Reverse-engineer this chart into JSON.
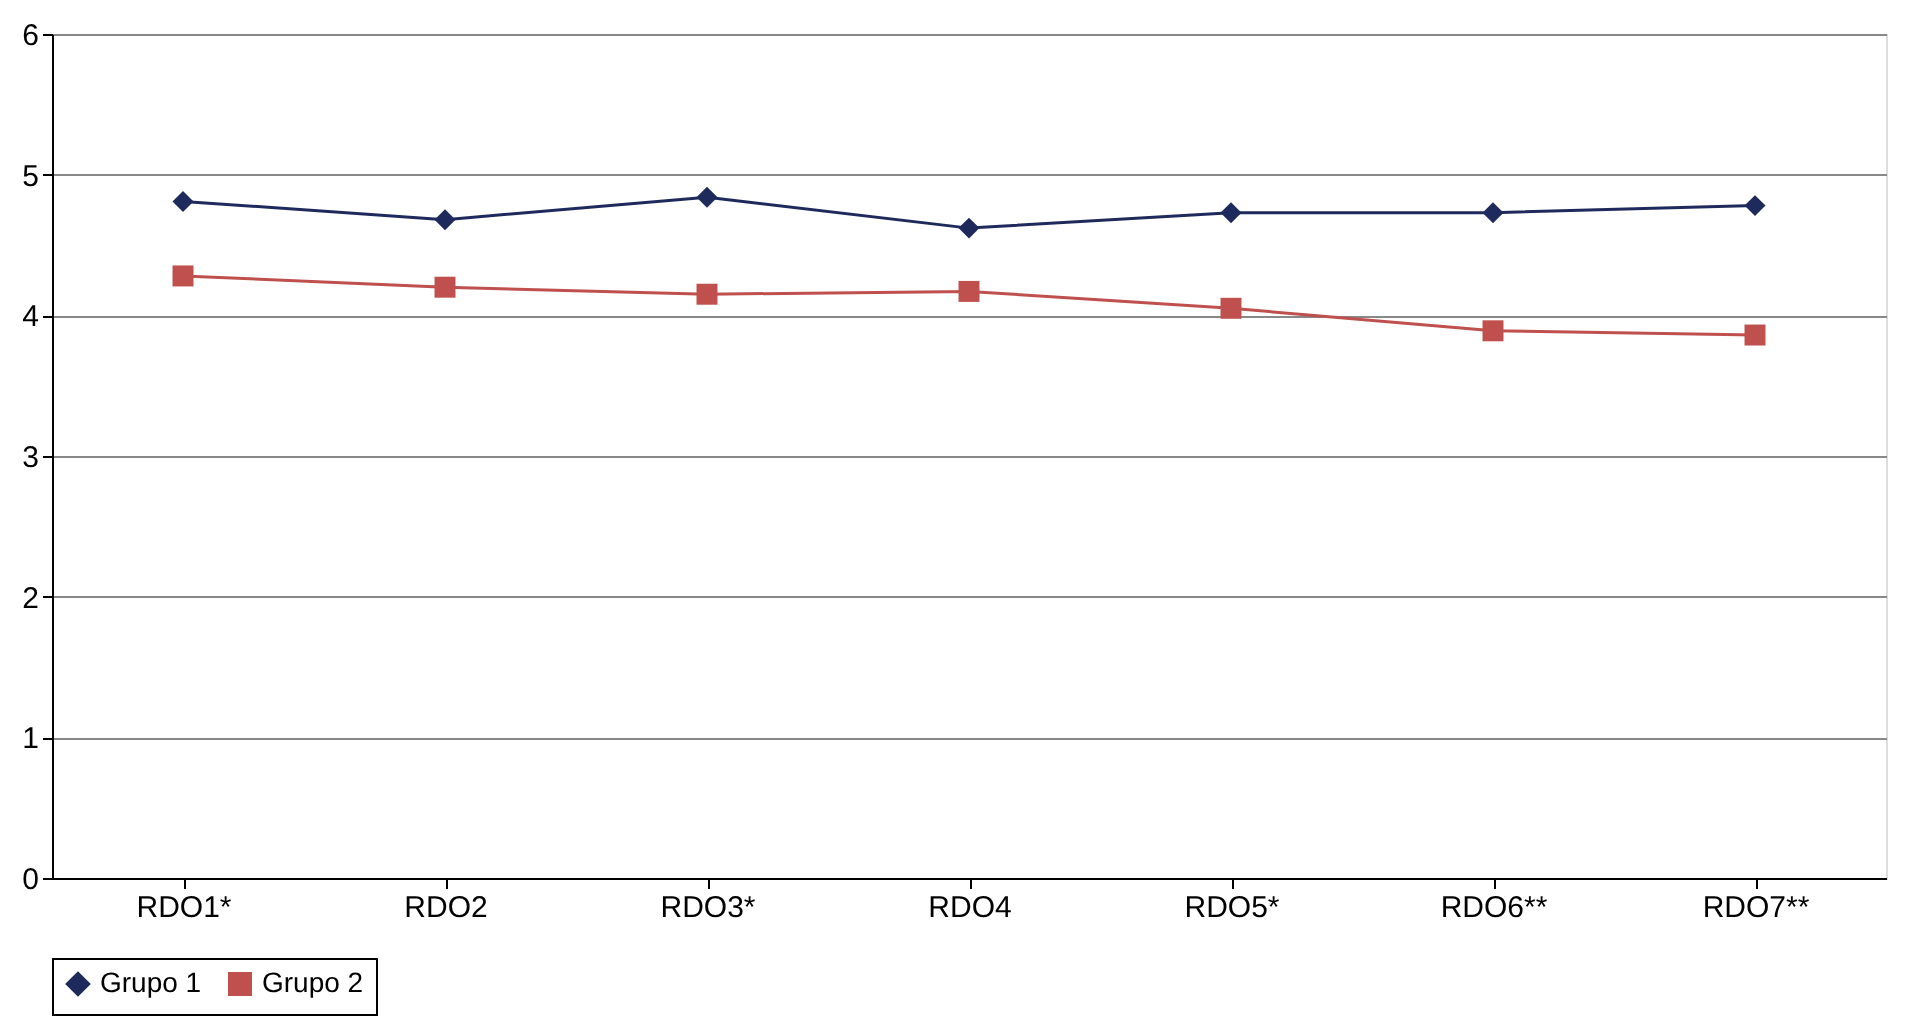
{
  "chart_data": {
    "type": "line",
    "categories": [
      "RDO1*",
      "RDO2",
      "RDO3*",
      "RDO4",
      "RDO5*",
      "RDO6**",
      "RDO7**"
    ],
    "series": [
      {
        "name": "Grupo 1",
        "color": "#1f2a5c",
        "marker": "diamond",
        "values": [
          4.81,
          4.68,
          4.84,
          4.62,
          4.73,
          4.73,
          4.78
        ]
      },
      {
        "name": "Grupo 2",
        "color": "#c0504d",
        "marker": "square",
        "values": [
          4.28,
          4.2,
          4.15,
          4.17,
          4.05,
          3.89,
          3.86
        ]
      }
    ],
    "ylim": [
      0,
      6
    ],
    "yticks": [
      0,
      1,
      2,
      3,
      4,
      5,
      6
    ],
    "grid": "y",
    "legend": "bottom",
    "line_style": "solid"
  }
}
